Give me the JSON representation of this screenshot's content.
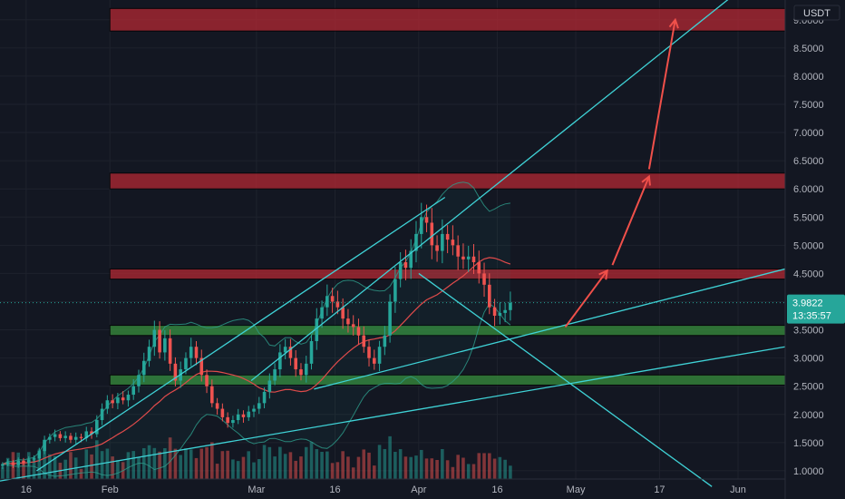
{
  "chart_data": {
    "type": "candlestick",
    "currency": "USDT",
    "y_axis": {
      "range": [
        0.5,
        9.35
      ],
      "ticks": [
        "1.0000",
        "1.5000",
        "2.0000",
        "2.5000",
        "3.0000",
        "3.5000",
        "4.0000",
        "4.5000",
        "5.0000",
        "5.5000",
        "6.0000",
        "6.5000",
        "7.0000",
        "7.5000",
        "8.0000",
        "8.5000",
        "9.0000"
      ],
      "scale": "linear"
    },
    "x_axis": {
      "range": [
        "2023-01-11",
        "2023-06-10"
      ],
      "ticks": [
        {
          "label": "16",
          "date": "2023-01-16"
        },
        {
          "label": "Feb",
          "date": "2023-02-01"
        },
        {
          "label": "Mar",
          "date": "2023-03-01"
        },
        {
          "label": "16",
          "date": "2023-03-16"
        },
        {
          "label": "Apr",
          "date": "2023-04-01"
        },
        {
          "label": "16",
          "date": "2023-04-16"
        },
        {
          "label": "May",
          "date": "2023-05-01"
        },
        {
          "label": "17",
          "date": "2023-05-17"
        },
        {
          "label": "Jun",
          "date": "2023-06-01"
        }
      ]
    },
    "last_price": "3.9822",
    "countdown": "13:35:57",
    "close_series": {
      "start_date": "2023-01-11",
      "interval": "1D",
      "values": [
        1.12,
        1.15,
        1.1,
        1.18,
        1.14,
        1.2,
        1.22,
        1.35,
        1.55,
        1.6,
        1.65,
        1.58,
        1.62,
        1.55,
        1.6,
        1.58,
        1.7,
        1.65,
        1.9,
        2.1,
        2.25,
        2.2,
        2.3,
        2.25,
        2.35,
        2.5,
        2.7,
        2.95,
        3.2,
        3.5,
        3.1,
        3.35,
        2.9,
        2.6,
        2.8,
        3.0,
        3.2,
        3.0,
        2.7,
        2.5,
        2.2,
        2.1,
        1.95,
        1.85,
        1.9,
        2.0,
        1.95,
        2.05,
        2.1,
        2.2,
        2.4,
        2.6,
        2.8,
        3.1,
        3.2,
        3.0,
        2.8,
        2.7,
        2.9,
        3.3,
        3.7,
        3.9,
        4.1,
        4.0,
        3.9,
        3.7,
        3.6,
        3.55,
        3.4,
        3.2,
        3.0,
        2.9,
        3.2,
        3.4,
        4.0,
        4.4,
        4.7,
        4.6,
        4.9,
        5.2,
        5.5,
        5.4,
        5.0,
        4.9,
        5.2,
        5.1,
        5.0,
        4.8,
        4.75,
        4.8,
        4.7,
        4.5,
        4.3,
        3.9,
        3.75,
        3.8,
        3.85,
        3.98
      ]
    },
    "horizontal_zones": [
      {
        "kind": "resistance",
        "low": 8.8,
        "high": 9.2,
        "color": "#b22833"
      },
      {
        "kind": "resistance",
        "low": 6.0,
        "high": 6.28,
        "color": "#b22833"
      },
      {
        "kind": "resistance",
        "low": 4.4,
        "high": 4.58,
        "color": "#b22833"
      },
      {
        "kind": "support",
        "low": 3.4,
        "high": 3.58,
        "color": "#388e3c"
      },
      {
        "kind": "support",
        "low": 2.52,
        "high": 2.7,
        "color": "#388e3c"
      }
    ],
    "trendlines": [
      {
        "from": [
          "2023-02-28",
          2.6
        ],
        "to": [
          "2023-06-01",
          9.5
        ]
      },
      {
        "from": [
          "2023-03-12",
          2.45
        ],
        "to": [
          "2023-06-10",
          4.58
        ]
      },
      {
        "from": [
          "2023-01-11",
          0.82
        ],
        "to": [
          "2023-06-10",
          3.2
        ]
      },
      {
        "from": [
          "2023-01-18",
          1.0
        ],
        "to": [
          "2023-04-06",
          5.85
        ]
      },
      {
        "from": [
          "2023-04-01",
          4.5
        ],
        "to": [
          "2023-05-27",
          0.72
        ]
      }
    ],
    "forecast_arrows": [
      {
        "from": [
          "2023-04-29",
          3.55
        ],
        "to": [
          "2023-05-07",
          4.55
        ]
      },
      {
        "from": [
          "2023-05-08",
          4.65
        ],
        "to": [
          "2023-05-15",
          6.22
        ]
      },
      {
        "from": [
          "2023-05-15",
          6.35
        ],
        "to": [
          "2023-05-20",
          9.0
        ]
      }
    ],
    "colors": {
      "up": "#26a69a",
      "down": "#ef5350",
      "trendline": "#3fd2d6",
      "arrow": "#f0504a",
      "background": "#131722"
    }
  }
}
